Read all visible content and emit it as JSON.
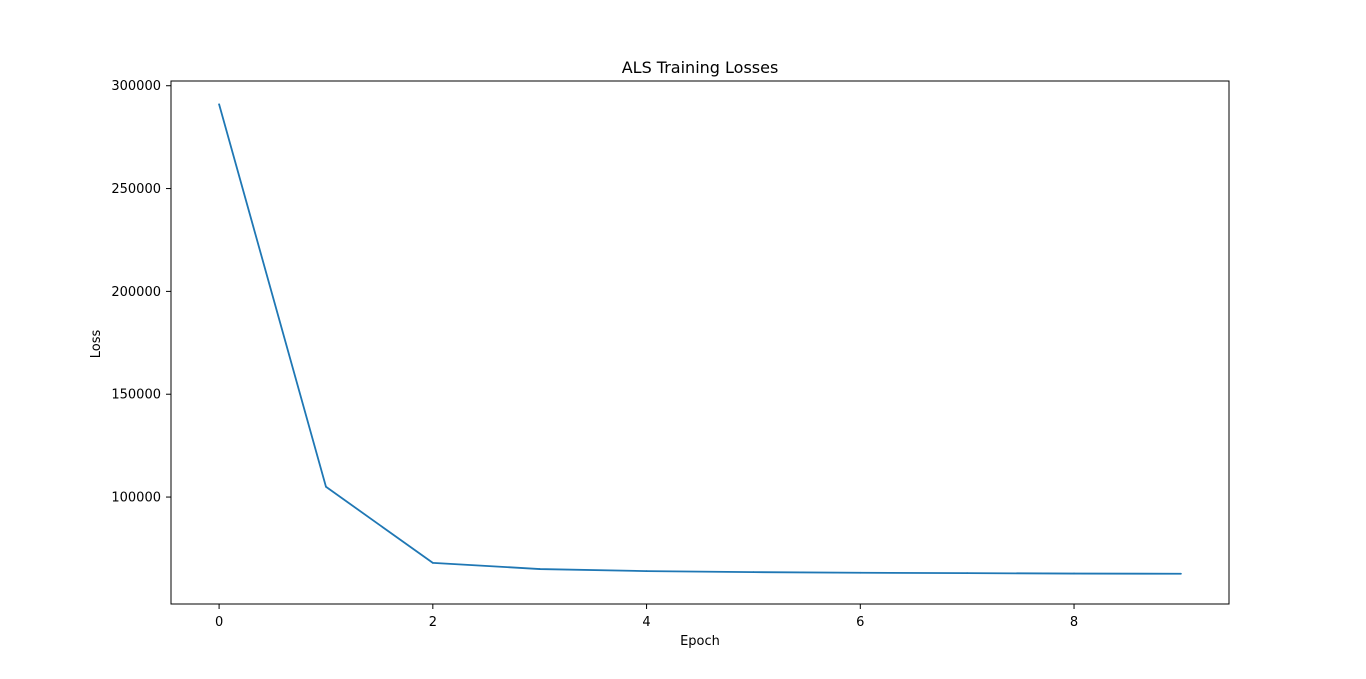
{
  "chart_data": {
    "type": "line",
    "title": "ALS Training Losses",
    "xlabel": "Epoch",
    "ylabel": "Loss",
    "x": [
      0,
      1,
      2,
      3,
      4,
      5,
      6,
      7,
      8,
      9
    ],
    "series": [
      {
        "values": [
          291000,
          105000,
          68000,
          65000,
          64000,
          63500,
          63200,
          63000,
          62800,
          62700
        ],
        "color": "#1f77b4"
      }
    ],
    "xlim": [
      -0.45,
      9.45
    ],
    "ylim": [
      48000,
      302300
    ],
    "xticks": [
      0,
      2,
      4,
      6,
      8
    ],
    "xtick_labels": [
      "0",
      "2",
      "4",
      "6",
      "8"
    ],
    "yticks": [
      100000,
      150000,
      200000,
      250000,
      300000
    ],
    "ytick_labels": [
      "100000",
      "150000",
      "200000",
      "250000",
      "300000"
    ],
    "grid": false,
    "legend": "none"
  }
}
